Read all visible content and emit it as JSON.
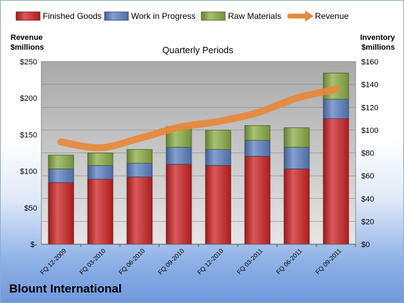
{
  "company": "Blount International",
  "chart_data": {
    "type": "bar",
    "stacked": true,
    "title": "Quarterly Periods",
    "categories": [
      "FQ 12-2009",
      "FQ 03-2010",
      "FQ 06-2010",
      "FQ 09-2010",
      "FQ 12-2010",
      "FQ 03-2011",
      "FQ 06-2011",
      "FQ 09-2011"
    ],
    "left_axis": {
      "label_line1": "Revenue",
      "label_line2": "$millions",
      "ylim": [
        0,
        250
      ],
      "ticks": [
        0,
        50,
        100,
        150,
        200,
        250
      ],
      "tick_labels": [
        "$-",
        "$50",
        "$100",
        "$150",
        "$200",
        "$250"
      ]
    },
    "right_axis": {
      "label_line1": "Inventory",
      "label_line2": "$millions",
      "ylim": [
        0,
        160
      ],
      "ticks": [
        0,
        20,
        40,
        60,
        80,
        100,
        120,
        140,
        160
      ],
      "tick_labels": [
        "$0",
        "$20",
        "$40",
        "$60",
        "$80",
        "$100",
        "$120",
        "$140",
        "$160"
      ]
    },
    "series": [
      {
        "name": "Finished Goods",
        "type": "bar",
        "axis": "right",
        "color": "#cc2222",
        "values": [
          54,
          57,
          59,
          70,
          69,
          77,
          66,
          110
        ]
      },
      {
        "name": "Work in Progress",
        "type": "bar",
        "axis": "right",
        "color": "#5b7fc0",
        "values": [
          12,
          12,
          12,
          15,
          14,
          14,
          19,
          17
        ]
      },
      {
        "name": "Raw Materials",
        "type": "bar",
        "axis": "right",
        "color": "#8aab45",
        "values": [
          12,
          11,
          12,
          18,
          17,
          13,
          17,
          23
        ]
      },
      {
        "name": "Revenue",
        "type": "line",
        "axis": "left",
        "color": "#e8883a",
        "values": [
          140,
          132,
          145,
          160,
          168,
          180,
          200,
          212
        ]
      }
    ],
    "grid": true,
    "legend_position": "top"
  }
}
